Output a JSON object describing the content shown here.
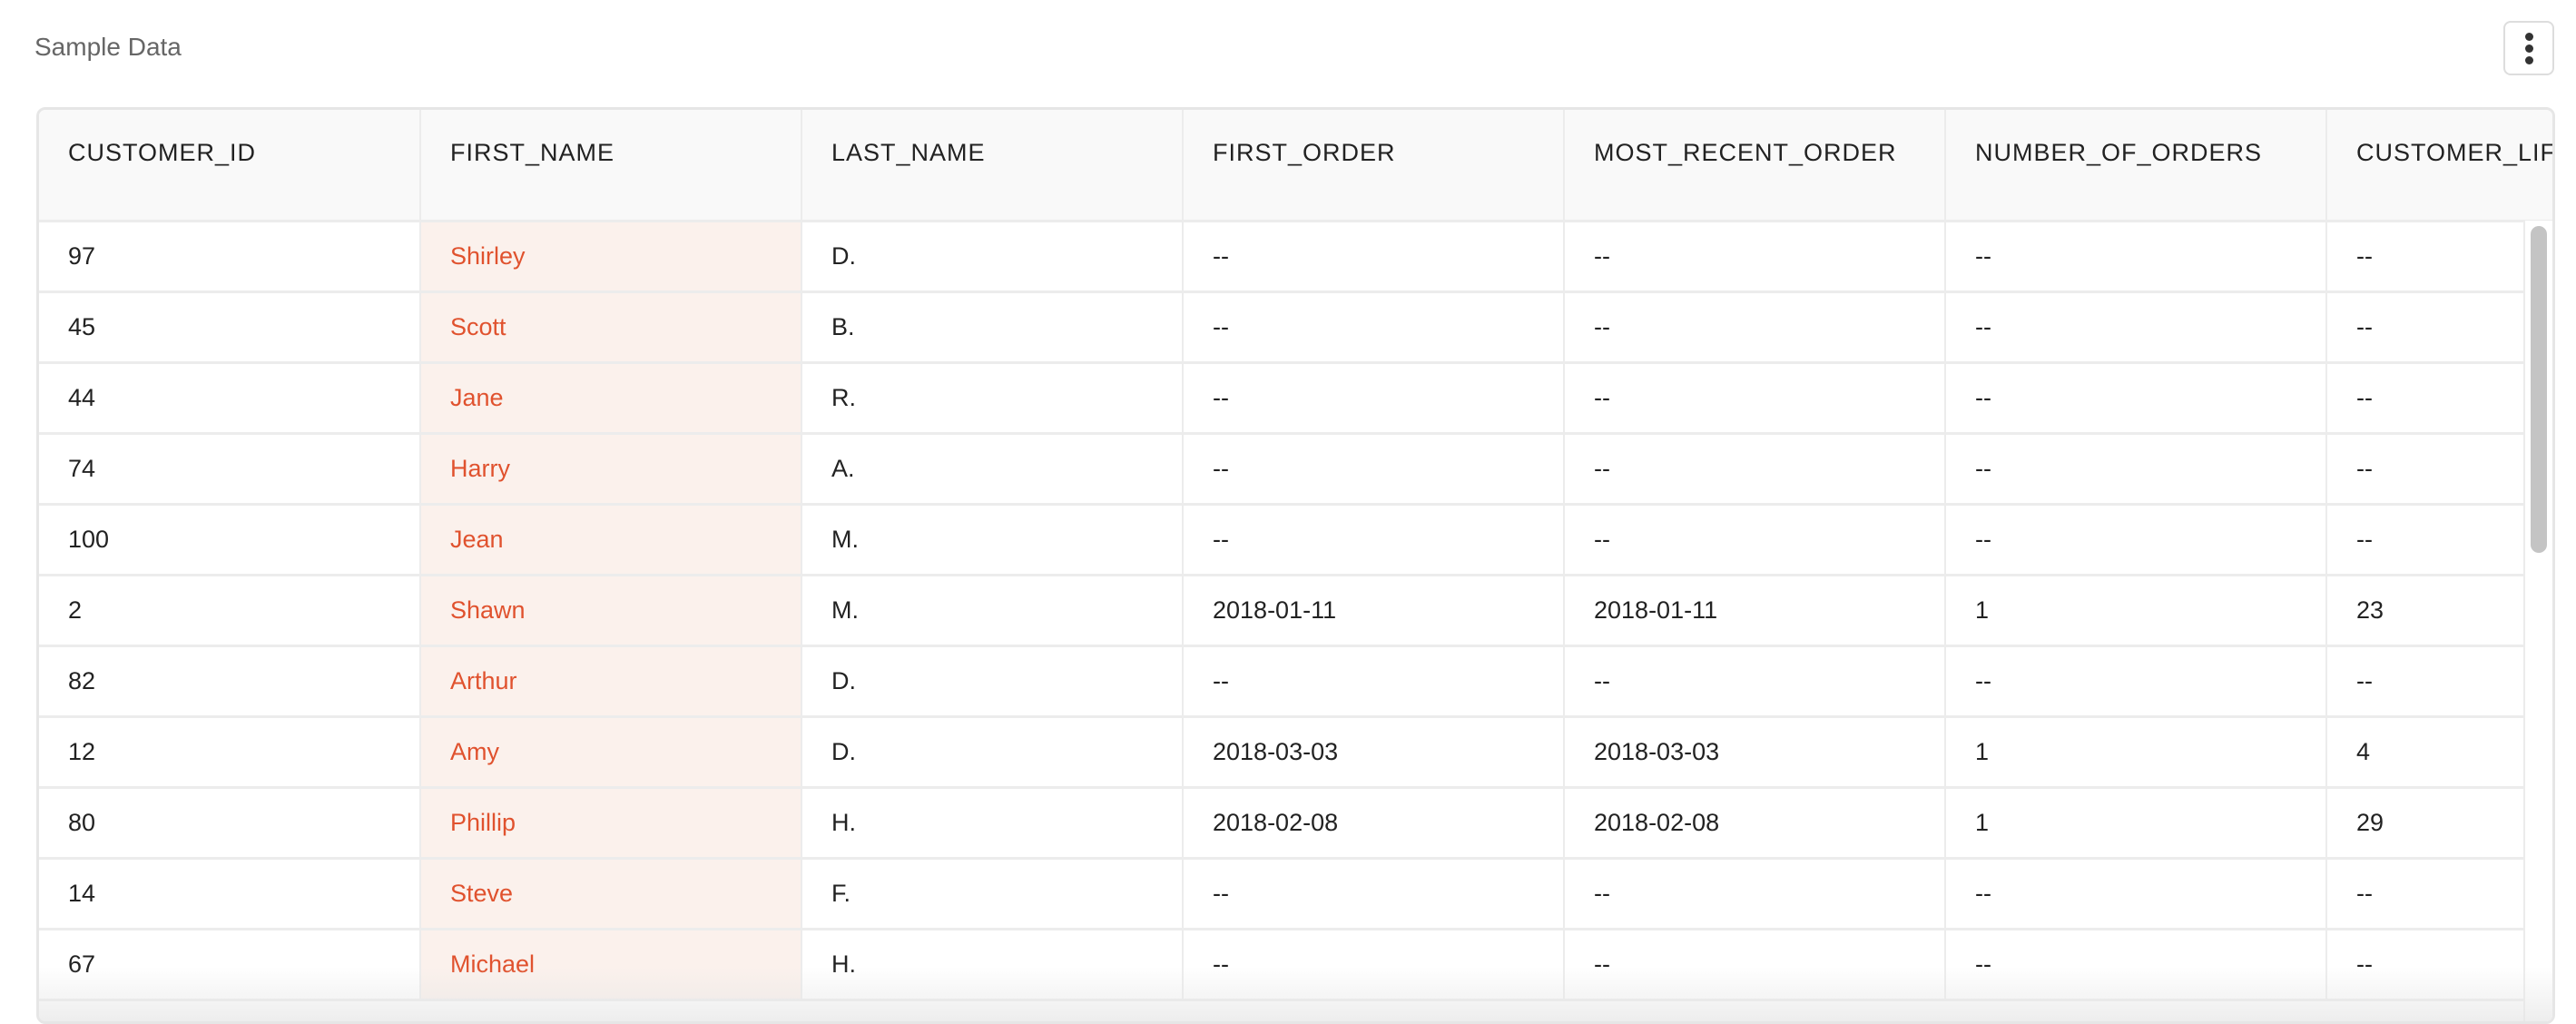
{
  "header": {
    "title": "Sample Data",
    "menu_icon": "more-vertical-icon"
  },
  "table": {
    "columns": [
      "CUSTOMER_ID",
      "FIRST_NAME",
      "LAST_NAME",
      "FIRST_ORDER",
      "MOST_RECENT_ORDER",
      "NUMBER_OF_ORDERS",
      "CUSTOMER_LIFETIME_VALUE"
    ],
    "columns_visible": [
      "CUSTOMER_ID",
      "FIRST_NAME",
      "LAST_NAME",
      "FIRST_ORDER",
      "MOST_RECENT_ORDER",
      "NUMBER_OF_ORDERS",
      "CUSTOMER_LIFETE"
    ],
    "rows": [
      [
        "97",
        "Shirley",
        "D.",
        "--",
        "--",
        "--",
        "--"
      ],
      [
        "45",
        "Scott",
        "B.",
        "--",
        "--",
        "--",
        "--"
      ],
      [
        "44",
        "Jane",
        "R.",
        "--",
        "--",
        "--",
        "--"
      ],
      [
        "74",
        "Harry",
        "A.",
        "--",
        "--",
        "--",
        "--"
      ],
      [
        "100",
        "Jean",
        "M.",
        "--",
        "--",
        "--",
        "--"
      ],
      [
        "2",
        "Shawn",
        "M.",
        "2018-01-11",
        "2018-01-11",
        "1",
        "23"
      ],
      [
        "82",
        "Arthur",
        "D.",
        "--",
        "--",
        "--",
        "--"
      ],
      [
        "12",
        "Amy",
        "D.",
        "2018-03-03",
        "2018-03-03",
        "1",
        "4"
      ],
      [
        "80",
        "Phillip",
        "H.",
        "2018-02-08",
        "2018-02-08",
        "1",
        "29"
      ],
      [
        "14",
        "Steve",
        "F.",
        "--",
        "--",
        "--",
        "--"
      ],
      [
        "67",
        "Michael",
        "H.",
        "--",
        "--",
        "--",
        "--"
      ]
    ]
  },
  "colors": {
    "highlight_text": "#e0522e",
    "highlight_bg": "#fbf1ec",
    "header_bg": "#f9f9f9"
  }
}
